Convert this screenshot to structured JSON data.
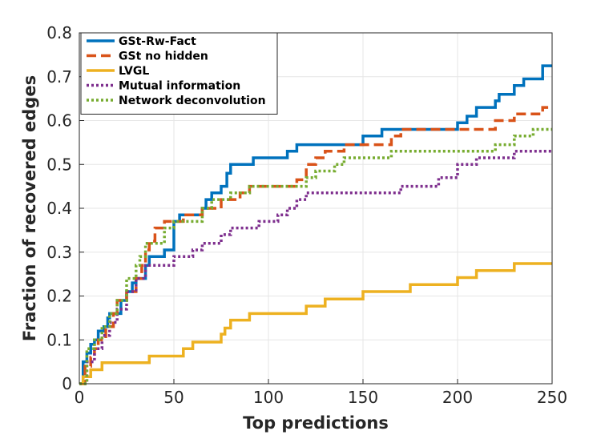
{
  "chart_data": {
    "type": "line",
    "title": "",
    "xlabel": "Top predictions",
    "ylabel": "Fraction of recovered edges",
    "xlim": [
      0,
      250
    ],
    "ylim": [
      0,
      0.8
    ],
    "xticks": [
      "0",
      "50",
      "100",
      "150",
      "200",
      "250"
    ],
    "yticks": [
      "0",
      "0.1",
      "0.2",
      "0.3",
      "0.4",
      "0.5",
      "0.6",
      "0.7",
      "0.8"
    ],
    "grid": true,
    "legend_position": "top-left",
    "series": [
      {
        "name": "GSt-Rw-Fact",
        "color": "#0072BD",
        "style": "solid",
        "x": [
          0,
          2,
          4,
          6,
          8,
          10,
          13,
          15,
          16,
          20,
          22,
          25,
          28,
          30,
          32,
          35,
          37,
          40,
          45,
          48,
          50,
          53,
          55,
          60,
          65,
          67,
          70,
          75,
          78,
          80,
          85,
          90,
          92,
          100,
          110,
          115,
          120,
          130,
          150,
          155,
          160,
          170,
          175,
          190,
          200,
          205,
          210,
          220,
          222,
          230,
          235,
          240,
          245,
          250
        ],
        "y": [
          0.0,
          0.05,
          0.07,
          0.09,
          0.1,
          0.12,
          0.13,
          0.15,
          0.16,
          0.16,
          0.19,
          0.21,
          0.23,
          0.24,
          0.24,
          0.27,
          0.29,
          0.29,
          0.305,
          0.305,
          0.37,
          0.385,
          0.385,
          0.385,
          0.4,
          0.42,
          0.435,
          0.45,
          0.48,
          0.5,
          0.5,
          0.5,
          0.515,
          0.515,
          0.53,
          0.545,
          0.545,
          0.545,
          0.565,
          0.565,
          0.58,
          0.58,
          0.58,
          0.58,
          0.595,
          0.61,
          0.63,
          0.645,
          0.66,
          0.68,
          0.695,
          0.695,
          0.725,
          0.725
        ]
      },
      {
        "name": "GSt no hidden",
        "color": "#D95319",
        "style": "dashed",
        "x": [
          0,
          3,
          6,
          8,
          10,
          14,
          18,
          20,
          25,
          27,
          30,
          33,
          35,
          37,
          40,
          45,
          50,
          55,
          60,
          65,
          70,
          75,
          80,
          85,
          90,
          100,
          110,
          115,
          120,
          125,
          130,
          140,
          150,
          160,
          165,
          170,
          175,
          190,
          200,
          210,
          220,
          230,
          240,
          245,
          250
        ],
        "y": [
          0.0,
          0.04,
          0.06,
          0.08,
          0.1,
          0.13,
          0.16,
          0.19,
          0.21,
          0.21,
          0.24,
          0.27,
          0.305,
          0.325,
          0.355,
          0.37,
          0.37,
          0.385,
          0.385,
          0.4,
          0.4,
          0.42,
          0.42,
          0.435,
          0.45,
          0.45,
          0.45,
          0.465,
          0.5,
          0.515,
          0.53,
          0.545,
          0.545,
          0.545,
          0.565,
          0.58,
          0.58,
          0.58,
          0.58,
          0.58,
          0.6,
          0.615,
          0.615,
          0.63,
          0.63
        ]
      },
      {
        "name": "LVGL",
        "color": "#EDB120",
        "style": "solid",
        "x": [
          0,
          2,
          4,
          6,
          10,
          12,
          20,
          30,
          35,
          37,
          45,
          50,
          55,
          57,
          60,
          65,
          70,
          75,
          77,
          80,
          90,
          100,
          110,
          120,
          125,
          130,
          140,
          150,
          160,
          170,
          175,
          180,
          190,
          200,
          210,
          220,
          230,
          240,
          250
        ],
        "y": [
          0.0,
          0.016,
          0.016,
          0.032,
          0.032,
          0.048,
          0.048,
          0.048,
          0.048,
          0.063,
          0.063,
          0.063,
          0.08,
          0.08,
          0.095,
          0.095,
          0.095,
          0.113,
          0.127,
          0.145,
          0.16,
          0.16,
          0.16,
          0.177,
          0.177,
          0.193,
          0.193,
          0.21,
          0.21,
          0.21,
          0.226,
          0.226,
          0.226,
          0.242,
          0.258,
          0.258,
          0.274,
          0.274,
          0.274
        ]
      },
      {
        "name": "Mutual information",
        "color": "#7E2F8E",
        "style": "dotted",
        "x": [
          0,
          4,
          8,
          12,
          16,
          20,
          25,
          30,
          35,
          40,
          45,
          50,
          55,
          60,
          65,
          70,
          75,
          80,
          85,
          90,
          95,
          100,
          105,
          110,
          115,
          120,
          125,
          130,
          140,
          150,
          160,
          170,
          180,
          190,
          200,
          210,
          220,
          230,
          240,
          250
        ],
        "y": [
          0.0,
          0.05,
          0.08,
          0.11,
          0.14,
          0.17,
          0.21,
          0.24,
          0.27,
          0.27,
          0.27,
          0.29,
          0.29,
          0.305,
          0.32,
          0.32,
          0.34,
          0.355,
          0.355,
          0.355,
          0.37,
          0.37,
          0.385,
          0.4,
          0.42,
          0.435,
          0.435,
          0.435,
          0.435,
          0.435,
          0.435,
          0.45,
          0.45,
          0.47,
          0.5,
          0.515,
          0.515,
          0.53,
          0.53,
          0.53
        ]
      },
      {
        "name": "Network deconvolution",
        "color": "#77AC30",
        "style": "dotted",
        "x": [
          0,
          4,
          8,
          12,
          16,
          20,
          25,
          30,
          32,
          35,
          40,
          45,
          50,
          55,
          60,
          65,
          70,
          75,
          80,
          85,
          90,
          100,
          110,
          120,
          125,
          130,
          135,
          140,
          150,
          160,
          165,
          170,
          180,
          190,
          200,
          210,
          220,
          230,
          240,
          250
        ],
        "y": [
          0.0,
          0.08,
          0.1,
          0.13,
          0.16,
          0.19,
          0.24,
          0.27,
          0.29,
          0.32,
          0.32,
          0.355,
          0.37,
          0.37,
          0.37,
          0.4,
          0.42,
          0.42,
          0.435,
          0.435,
          0.45,
          0.45,
          0.45,
          0.47,
          0.485,
          0.485,
          0.5,
          0.515,
          0.515,
          0.515,
          0.53,
          0.53,
          0.53,
          0.53,
          0.53,
          0.53,
          0.545,
          0.565,
          0.58,
          0.58
        ]
      }
    ]
  }
}
